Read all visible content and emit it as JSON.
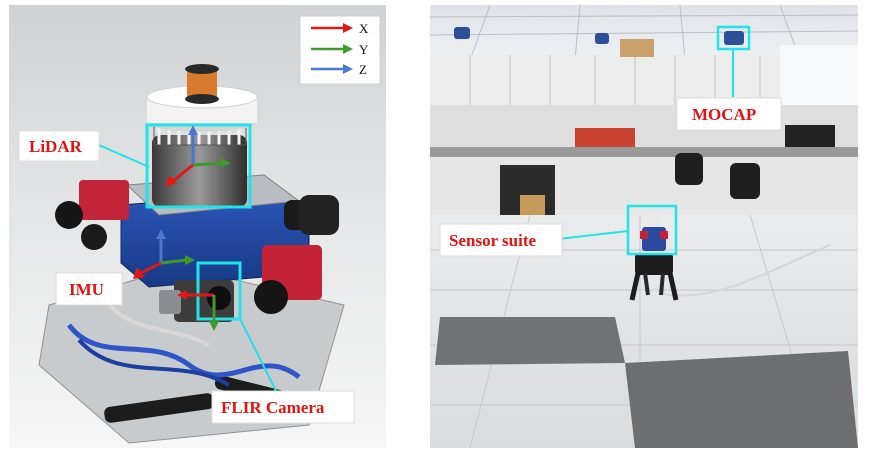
{
  "figure": {
    "left_panel": {
      "labels": {
        "lidar": "LiDAR",
        "imu": "IMU",
        "flir_camera": "FLIR Camera"
      },
      "axis_legend": {
        "x": "X",
        "y": "Y",
        "z": "Z"
      }
    },
    "right_panel": {
      "labels": {
        "mocap": "MOCAP",
        "sensor_suite": "Sensor suite"
      }
    },
    "colors": {
      "label_text": "#e41212",
      "highlight_box": "#22e4e8",
      "axis_x": "#e01818",
      "axis_y": "#3f9a2c",
      "axis_z": "#4a78d0"
    }
  }
}
